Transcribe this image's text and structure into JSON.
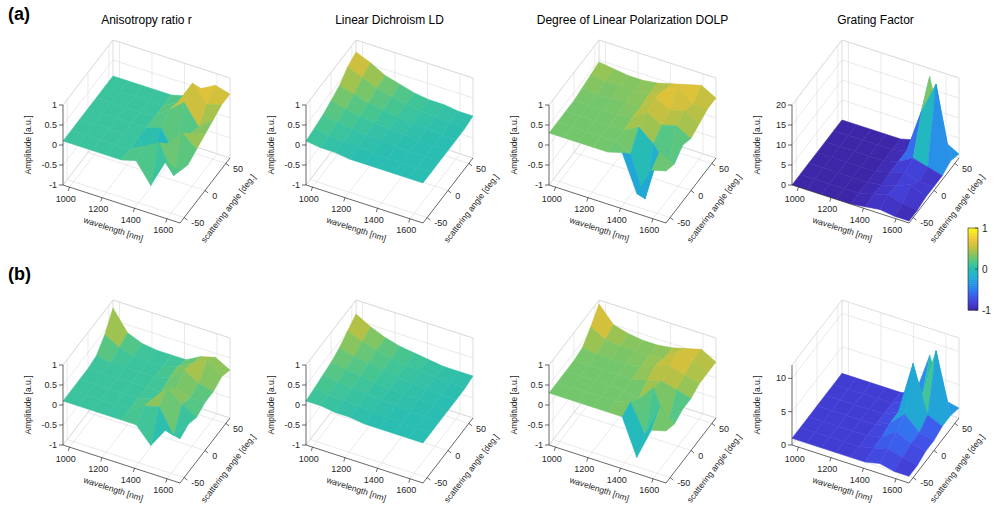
{
  "figure": {
    "row_labels": [
      "(a)",
      "(b)"
    ],
    "colorbar": {
      "lim": [
        -1,
        1
      ],
      "ticks": [
        1,
        0,
        -1
      ]
    }
  },
  "chart_data": [
    {
      "type": "surface",
      "title": "Anisotropy ratio r",
      "xlabel": "wavelength [nm]",
      "ylabel": "scattering angle [deg.]",
      "zlabel": "Amplitude [a.u.]",
      "x": [
        960,
        1050,
        1140,
        1230,
        1320,
        1410,
        1500,
        1590,
        1680
      ],
      "y": [
        -60,
        -40,
        -20,
        0,
        20,
        40,
        60
      ],
      "z": [
        [
          0.1,
          0.1,
          0.1,
          0.1,
          0.1,
          0.2,
          -0.3,
          0.4,
          0.3
        ],
        [
          0.1,
          0.1,
          0.1,
          0.1,
          0.1,
          0.3,
          0.5,
          -0.2,
          0.2
        ],
        [
          0.1,
          0.1,
          0.1,
          0.1,
          0.1,
          -0.3,
          0.2,
          0.6,
          0.3
        ],
        [
          0.1,
          0.1,
          0.1,
          0.1,
          0.1,
          0.2,
          -0.4,
          0.3,
          0.4
        ],
        [
          0.1,
          0.1,
          0.1,
          0.1,
          0.1,
          0.4,
          0.7,
          0.2,
          0.5
        ],
        [
          0.1,
          0.1,
          0.1,
          0.1,
          0.1,
          0.3,
          0.9,
          0.5,
          0.6
        ],
        [
          0.1,
          0.1,
          0.1,
          0.1,
          0.1,
          0.2,
          0.5,
          0.7,
          0.6
        ]
      ],
      "xlim": [
        960,
        1680
      ],
      "xticks": [
        1000,
        1200,
        1400,
        1600
      ],
      "ylim": [
        -60,
        60
      ],
      "yticks": [
        -50,
        0,
        50
      ],
      "zlim": [
        -1,
        1
      ],
      "zticks": [
        -1,
        -0.5,
        0,
        0.5,
        1
      ],
      "grid": true
    },
    {
      "type": "surface",
      "title": "Linear Dichroism LD",
      "xlabel": "wavelength [nm]",
      "ylabel": "scattering angle [deg.]",
      "zlabel": "Amplitude [a.u.]",
      "x": [
        960,
        1050,
        1140,
        1230,
        1320,
        1410,
        1500,
        1590,
        1680
      ],
      "y": [
        -60,
        -40,
        -20,
        0,
        20,
        40,
        60
      ],
      "z": [
        [
          0.1,
          0.05,
          0.05,
          0.0,
          0.0,
          0.0,
          0.0,
          0.0,
          0.0
        ],
        [
          0.15,
          0.1,
          0.05,
          0.05,
          0.0,
          0.0,
          0.0,
          0.0,
          0.0
        ],
        [
          0.2,
          0.15,
          0.1,
          0.05,
          0.05,
          0.0,
          0.0,
          0.0,
          0.0
        ],
        [
          0.3,
          0.2,
          0.15,
          0.1,
          0.05,
          0.05,
          0.0,
          0.0,
          0.0
        ],
        [
          0.4,
          0.3,
          0.2,
          0.15,
          0.1,
          0.05,
          0.05,
          0.0,
          0.0
        ],
        [
          0.6,
          0.45,
          0.3,
          0.2,
          0.15,
          0.1,
          0.05,
          0.05,
          0.0
        ],
        [
          0.7,
          0.55,
          0.35,
          0.25,
          0.15,
          0.1,
          0.1,
          0.05,
          0.05
        ]
      ],
      "xlim": [
        960,
        1680
      ],
      "xticks": [
        1000,
        1200,
        1400,
        1600
      ],
      "ylim": [
        -60,
        60
      ],
      "yticks": [
        -50,
        0,
        50
      ],
      "zlim": [
        -1,
        1
      ],
      "zticks": [
        -1,
        -0.5,
        0,
        0.5,
        1
      ],
      "grid": true
    },
    {
      "type": "surface",
      "title": "Degree of Linear Polarization DOLP",
      "xlabel": "wavelength [nm]",
      "ylabel": "scattering angle [deg.]",
      "zlabel": "Amplitude [a.u.]",
      "x": [
        960,
        1050,
        1140,
        1230,
        1320,
        1410,
        1500,
        1590,
        1680
      ],
      "y": [
        -60,
        -40,
        -20,
        0,
        20,
        40,
        60
      ],
      "z": [
        [
          0.3,
          0.3,
          0.3,
          0.3,
          0.3,
          0.4,
          -0.5,
          0.2,
          0.3
        ],
        [
          0.3,
          0.3,
          0.3,
          0.3,
          0.3,
          0.1,
          -0.9,
          0.4,
          0.2
        ],
        [
          0.3,
          0.3,
          0.3,
          0.3,
          0.3,
          0.5,
          0.2,
          -0.3,
          0.4
        ],
        [
          0.3,
          0.3,
          0.3,
          0.3,
          0.35,
          0.6,
          0.4,
          0.5,
          0.3
        ],
        [
          0.35,
          0.3,
          0.3,
          0.35,
          0.35,
          0.7,
          0.5,
          0.6,
          0.4
        ],
        [
          0.4,
          0.35,
          0.35,
          0.35,
          0.4,
          0.6,
          0.8,
          0.5,
          0.5
        ],
        [
          0.45,
          0.4,
          0.35,
          0.35,
          0.4,
          0.5,
          0.6,
          0.7,
          0.5
        ]
      ],
      "xlim": [
        960,
        1680
      ],
      "xticks": [
        1000,
        1200,
        1400,
        1600
      ],
      "ylim": [
        -60,
        60
      ],
      "yticks": [
        -50,
        0,
        50
      ],
      "zlim": [
        -1,
        1
      ],
      "zticks": [
        -1,
        -0.5,
        0,
        0.5,
        1
      ],
      "grid": true
    },
    {
      "type": "surface",
      "title": "Grating Factor",
      "xlabel": "wavelength [nm]",
      "ylabel": "scattering angle [deg.]",
      "zlabel": "Amplitude [a.u.]",
      "x": [
        960,
        1050,
        1140,
        1230,
        1320,
        1410,
        1500,
        1590,
        1680
      ],
      "y": [
        -60,
        -40,
        -20,
        0,
        20,
        40,
        60
      ],
      "z": [
        [
          0,
          0,
          0,
          0,
          0,
          0.5,
          1,
          0.5,
          0.5
        ],
        [
          0,
          0,
          0,
          0,
          0,
          1,
          2,
          1,
          0.5
        ],
        [
          0,
          0,
          0,
          0,
          0,
          0.5,
          1.5,
          3,
          1
        ],
        [
          0,
          0,
          0,
          0,
          0,
          1,
          2,
          1,
          1
        ],
        [
          0,
          0,
          0,
          0,
          0,
          1,
          3,
          2,
          1
        ],
        [
          0,
          0,
          0,
          0,
          0,
          1,
          12,
          20,
          2
        ],
        [
          0,
          0,
          0,
          0,
          0,
          1,
          18,
          3,
          1
        ]
      ],
      "xlim": [
        960,
        1680
      ],
      "xticks": [
        1000,
        1200,
        1400,
        1600
      ],
      "ylim": [
        -60,
        60
      ],
      "yticks": [
        -50,
        0,
        50
      ],
      "zlim": [
        0,
        20
      ],
      "zticks": [
        0,
        5,
        10,
        15,
        20
      ],
      "grid": true
    },
    {
      "type": "surface",
      "xlabel": "wavelength [nm]",
      "ylabel": "scattering angle [deg.]",
      "zlabel": "Amplitude [a.u.]",
      "x": [
        960,
        1050,
        1140,
        1230,
        1320,
        1410,
        1500,
        1590,
        1680
      ],
      "y": [
        -60,
        -40,
        -20,
        0,
        20,
        40,
        60
      ],
      "z": [
        [
          0.1,
          0.1,
          0.1,
          0.1,
          0.1,
          0.1,
          -0.3,
          0.2,
          0.1
        ],
        [
          0.1,
          0.1,
          0.1,
          0.1,
          0.1,
          0.3,
          0.4,
          -0.2,
          0.2
        ],
        [
          0.1,
          0.1,
          0.1,
          0.1,
          0.1,
          0.2,
          0.6,
          0.3,
          0.1
        ],
        [
          0.1,
          0.1,
          0.1,
          0.1,
          0.1,
          0.1,
          0.3,
          0.2,
          0.2
        ],
        [
          0.15,
          0.1,
          0.1,
          0.1,
          0.1,
          0.2,
          0.5,
          0.3,
          0.2
        ],
        [
          0.4,
          0.2,
          0.1,
          0.1,
          0.1,
          0.2,
          0.4,
          0.6,
          0.3
        ],
        [
          0.8,
          0.3,
          0.15,
          0.1,
          0.1,
          0.1,
          0.3,
          0.4,
          0.2
        ]
      ],
      "xlim": [
        960,
        1680
      ],
      "xticks": [
        1000,
        1200,
        1400,
        1600
      ],
      "ylim": [
        -60,
        60
      ],
      "yticks": [
        -50,
        0,
        50
      ],
      "zlim": [
        -1,
        1
      ],
      "zticks": [
        -1,
        -0.5,
        0,
        0.5,
        1
      ],
      "grid": true
    },
    {
      "type": "surface",
      "xlabel": "wavelength [nm]",
      "ylabel": "scattering angle [deg.]",
      "zlabel": "Amplitude [a.u.]",
      "x": [
        960,
        1050,
        1140,
        1230,
        1320,
        1410,
        1500,
        1590,
        1680
      ],
      "y": [
        -60,
        -40,
        -20,
        0,
        20,
        40,
        60
      ],
      "z": [
        [
          0.1,
          0.1,
          0.05,
          0.05,
          0.0,
          0.0,
          0.0,
          0.0,
          0.0
        ],
        [
          0.15,
          0.1,
          0.1,
          0.05,
          0.05,
          0.0,
          0.0,
          0.0,
          0.0
        ],
        [
          0.2,
          0.15,
          0.1,
          0.1,
          0.05,
          0.05,
          0.0,
          0.0,
          0.0
        ],
        [
          0.25,
          0.2,
          0.15,
          0.1,
          0.05,
          0.05,
          0.05,
          0.0,
          0.0
        ],
        [
          0.35,
          0.25,
          0.2,
          0.15,
          0.1,
          0.05,
          0.05,
          0.0,
          0.0
        ],
        [
          0.5,
          0.35,
          0.25,
          0.15,
          0.1,
          0.1,
          0.05,
          0.05,
          0.0
        ],
        [
          0.65,
          0.45,
          0.3,
          0.2,
          0.15,
          0.1,
          0.05,
          0.05,
          0.05
        ]
      ],
      "xlim": [
        960,
        1680
      ],
      "xticks": [
        1000,
        1200,
        1400,
        1600
      ],
      "ylim": [
        -60,
        60
      ],
      "yticks": [
        -50,
        0,
        50
      ],
      "zlim": [
        -1,
        1
      ],
      "zticks": [
        -1,
        -0.5,
        0,
        0.5,
        1
      ],
      "grid": true
    },
    {
      "type": "surface",
      "xlabel": "wavelength [nm]",
      "ylabel": "scattering angle [deg.]",
      "zlabel": "Amplitude [a.u.]",
      "x": [
        960,
        1050,
        1140,
        1230,
        1320,
        1410,
        1500,
        1590,
        1680
      ],
      "y": [
        -60,
        -40,
        -20,
        0,
        20,
        40,
        60
      ],
      "z": [
        [
          0.3,
          0.3,
          0.3,
          0.3,
          0.3,
          0.3,
          -0.6,
          0.2,
          0.3
        ],
        [
          0.3,
          0.3,
          0.3,
          0.3,
          0.3,
          0.4,
          -0.3,
          0.5,
          0.2
        ],
        [
          0.3,
          0.3,
          0.3,
          0.3,
          0.3,
          0.2,
          0.6,
          -0.2,
          0.3
        ],
        [
          0.3,
          0.3,
          0.3,
          0.3,
          0.3,
          0.4,
          0.5,
          0.4,
          0.3
        ],
        [
          0.35,
          0.3,
          0.3,
          0.3,
          0.35,
          0.5,
          0.6,
          0.5,
          0.4
        ],
        [
          0.6,
          0.4,
          0.35,
          0.35,
          0.35,
          0.4,
          0.7,
          0.6,
          0.4
        ],
        [
          0.9,
          0.5,
          0.4,
          0.35,
          0.35,
          0.4,
          0.5,
          0.6,
          0.4
        ]
      ],
      "xlim": [
        960,
        1680
      ],
      "xticks": [
        1000,
        1200,
        1400,
        1600
      ],
      "ylim": [
        -60,
        60
      ],
      "yticks": [
        -50,
        0,
        50
      ],
      "zlim": [
        -1,
        1
      ],
      "zticks": [
        -1,
        -0.5,
        0,
        0.5,
        1
      ],
      "grid": true
    },
    {
      "type": "surface",
      "xlabel": "wavelength [nm]",
      "ylabel": "scattering angle [deg.]",
      "zlabel": "Amplitude [a.u.]",
      "x": [
        960,
        1050,
        1140,
        1230,
        1320,
        1410,
        1500,
        1590,
        1680
      ],
      "y": [
        -60,
        -40,
        -20,
        0,
        20,
        40,
        60
      ],
      "z": [
        [
          1,
          1,
          1,
          1,
          1,
          1,
          1.5,
          1,
          1
        ],
        [
          1,
          1,
          1,
          1,
          1,
          1.5,
          2,
          1.5,
          1
        ],
        [
          1,
          1,
          1,
          1,
          1,
          1.5,
          3,
          2,
          1.5
        ],
        [
          1,
          1,
          1,
          1,
          1,
          2,
          4,
          2,
          1.5
        ],
        [
          1,
          1,
          1,
          1,
          1,
          2,
          10,
          3,
          2
        ],
        [
          1,
          1,
          1,
          1,
          1,
          2,
          3,
          11,
          2
        ],
        [
          1,
          1,
          1,
          1,
          1,
          1.5,
          8,
          2,
          1.5
        ]
      ],
      "xlim": [
        960,
        1680
      ],
      "xticks": [
        1000,
        1200,
        1400,
        1600
      ],
      "ylim": [
        -60,
        60
      ],
      "yticks": [
        -50,
        0,
        50
      ],
      "zlim": [
        0,
        12
      ],
      "zticks": [
        0,
        5,
        10
      ],
      "grid": true
    }
  ]
}
